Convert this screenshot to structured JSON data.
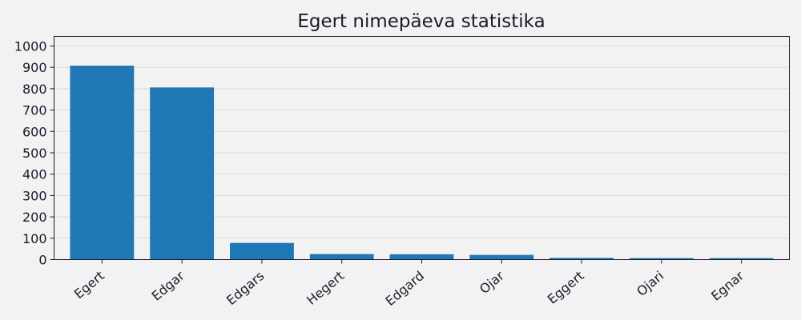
{
  "chart_data": {
    "type": "bar",
    "title": "Egert nimepäeva statistika",
    "xlabel": "",
    "ylabel": "",
    "categories": [
      "Egert",
      "Edgar",
      "Edgars",
      "Hegert",
      "Edgard",
      "Ojar",
      "Eggert",
      "Ojari",
      "Egnar"
    ],
    "values": [
      908,
      806,
      78,
      26,
      25,
      22,
      8,
      7,
      7
    ],
    "ylim": [
      0,
      1045
    ],
    "yticks": [
      0,
      100,
      200,
      300,
      400,
      500,
      600,
      700,
      800,
      900,
      1000
    ],
    "grid": "horizontal",
    "bar_color": "#1f77b4"
  }
}
